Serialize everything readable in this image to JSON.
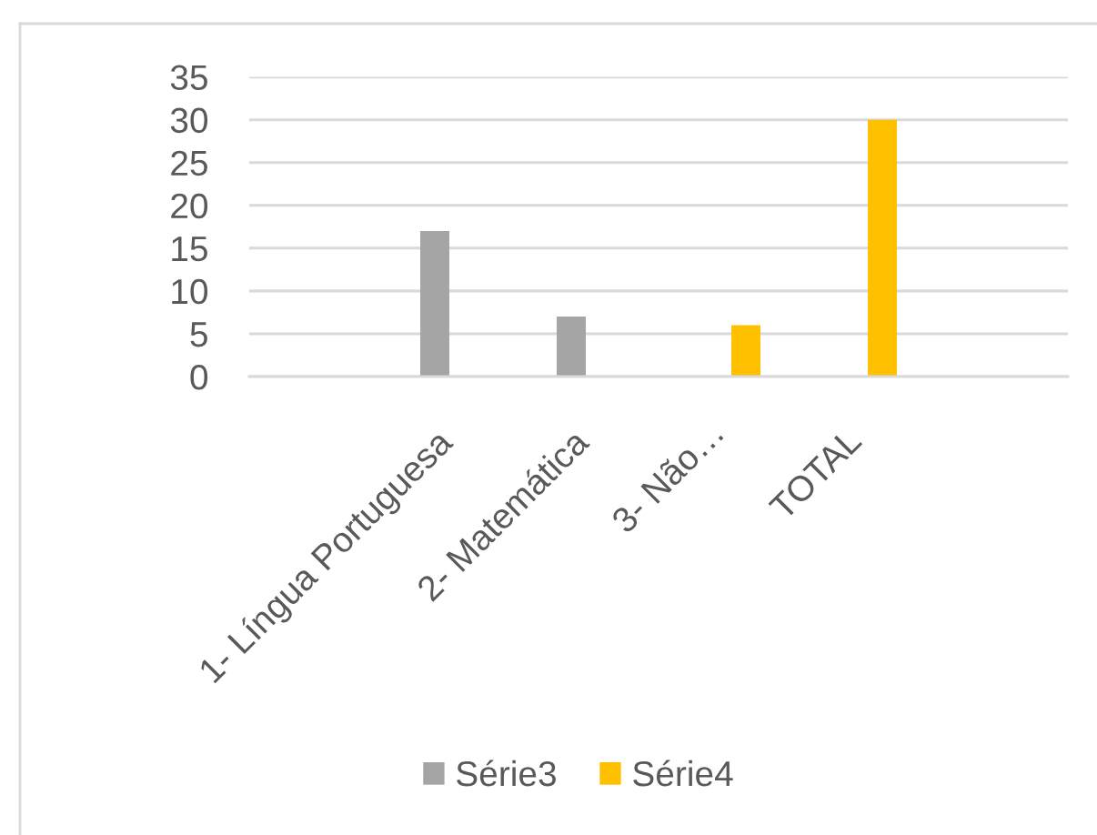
{
  "chart_data": {
    "type": "bar",
    "categories": [
      null,
      "1- Língua Portuguesa",
      "2- Matemática",
      "3- Não…",
      "TOTAL",
      null
    ],
    "series": [
      {
        "name": "Série3",
        "color": "#a5a5a5",
        "values": [
          null,
          17,
          7,
          null,
          null,
          null
        ]
      },
      {
        "name": "Série4",
        "color": "#ffc000",
        "values": [
          null,
          null,
          null,
          6,
          30,
          null
        ]
      }
    ],
    "ylim": [
      0,
      35
    ],
    "yticks": [
      0,
      5,
      10,
      15,
      20,
      25,
      30,
      35
    ],
    "grid": "y",
    "legend": "bottom"
  }
}
